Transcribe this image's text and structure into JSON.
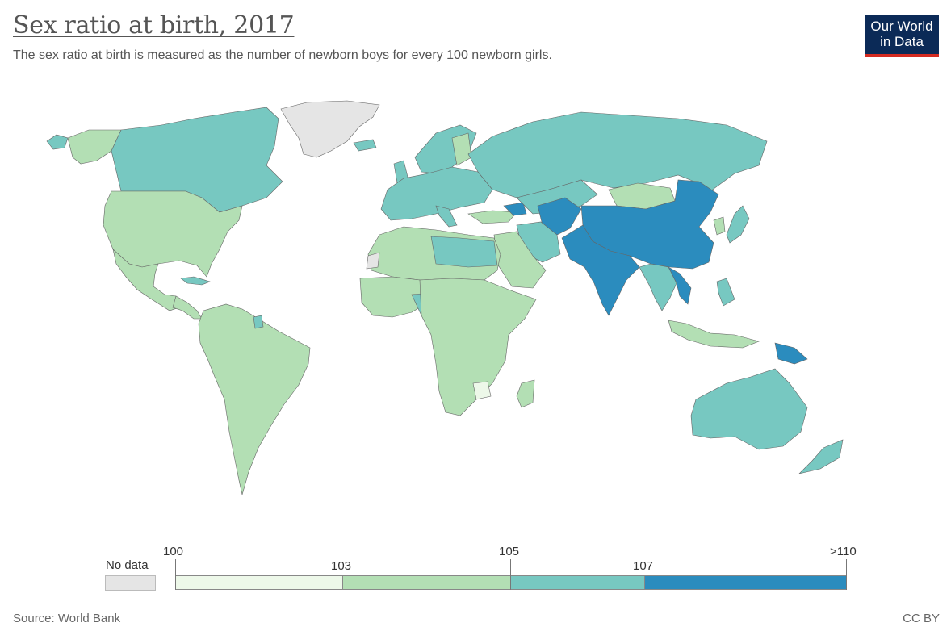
{
  "header": {
    "title": "Sex ratio at birth, 2017",
    "subtitle": "The sex ratio at birth is measured as the number of newborn boys for every 100 newborn girls."
  },
  "logo": {
    "line1": "Our World",
    "line2": "in Data"
  },
  "legend": {
    "no_data_label": "No data",
    "ticks": [
      "100",
      "103",
      "105",
      "107",
      ">110"
    ],
    "bins": [
      {
        "from": "100",
        "to": "103",
        "color": "#edf8e9"
      },
      {
        "from": "103",
        "to": "105",
        "color": "#b3dfb4"
      },
      {
        "from": "105",
        "to": "107",
        "color": "#77c8c1"
      },
      {
        "from": "107",
        "to": ">110",
        "color": "#2b8cbe"
      }
    ],
    "no_data_color": "#e5e5e5"
  },
  "colors": {
    "low": "#edf8e9",
    "mid": "#b3dfb4",
    "high": "#77c8c1",
    "top": "#2b8cbe",
    "no_data": "#e5e5e5",
    "brand_blue": "#0b2a57",
    "brand_red": "#d42b21"
  },
  "footer": {
    "source": "Source: World Bank",
    "license": "CC BY"
  }
}
